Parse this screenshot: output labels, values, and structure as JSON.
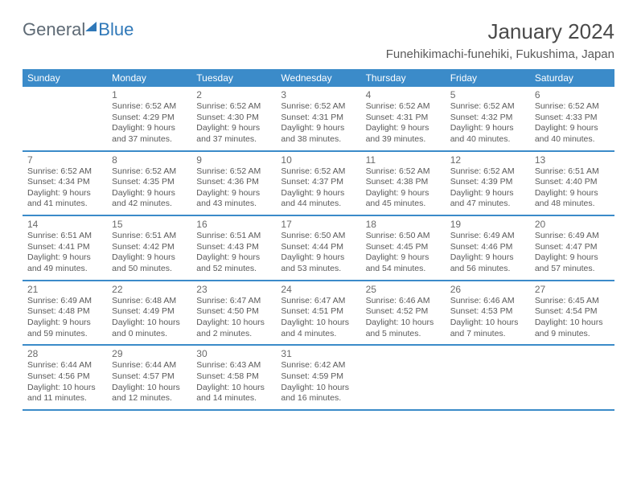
{
  "logo": {
    "part1": "General",
    "part2": "Blue"
  },
  "header": {
    "month_year": "January 2024",
    "location": "Funehikimachi-funehiki, Fukushima, Japan"
  },
  "colors": {
    "header_bar": "#3b8bc9",
    "row_border": "#3b8bc9",
    "bg": "#ffffff",
    "text": "#5a5a5a",
    "logo_gray": "#5e6a75",
    "logo_blue": "#2f78b8"
  },
  "weekdays": [
    "Sunday",
    "Monday",
    "Tuesday",
    "Wednesday",
    "Thursday",
    "Friday",
    "Saturday"
  ],
  "weeks": [
    [
      null,
      {
        "d": "1",
        "sr": "6:52 AM",
        "ss": "4:29 PM",
        "dl": "9 hours and 37 minutes."
      },
      {
        "d": "2",
        "sr": "6:52 AM",
        "ss": "4:30 PM",
        "dl": "9 hours and 37 minutes."
      },
      {
        "d": "3",
        "sr": "6:52 AM",
        "ss": "4:31 PM",
        "dl": "9 hours and 38 minutes."
      },
      {
        "d": "4",
        "sr": "6:52 AM",
        "ss": "4:31 PM",
        "dl": "9 hours and 39 minutes."
      },
      {
        "d": "5",
        "sr": "6:52 AM",
        "ss": "4:32 PM",
        "dl": "9 hours and 40 minutes."
      },
      {
        "d": "6",
        "sr": "6:52 AM",
        "ss": "4:33 PM",
        "dl": "9 hours and 40 minutes."
      }
    ],
    [
      {
        "d": "7",
        "sr": "6:52 AM",
        "ss": "4:34 PM",
        "dl": "9 hours and 41 minutes."
      },
      {
        "d": "8",
        "sr": "6:52 AM",
        "ss": "4:35 PM",
        "dl": "9 hours and 42 minutes."
      },
      {
        "d": "9",
        "sr": "6:52 AM",
        "ss": "4:36 PM",
        "dl": "9 hours and 43 minutes."
      },
      {
        "d": "10",
        "sr": "6:52 AM",
        "ss": "4:37 PM",
        "dl": "9 hours and 44 minutes."
      },
      {
        "d": "11",
        "sr": "6:52 AM",
        "ss": "4:38 PM",
        "dl": "9 hours and 45 minutes."
      },
      {
        "d": "12",
        "sr": "6:52 AM",
        "ss": "4:39 PM",
        "dl": "9 hours and 47 minutes."
      },
      {
        "d": "13",
        "sr": "6:51 AM",
        "ss": "4:40 PM",
        "dl": "9 hours and 48 minutes."
      }
    ],
    [
      {
        "d": "14",
        "sr": "6:51 AM",
        "ss": "4:41 PM",
        "dl": "9 hours and 49 minutes."
      },
      {
        "d": "15",
        "sr": "6:51 AM",
        "ss": "4:42 PM",
        "dl": "9 hours and 50 minutes."
      },
      {
        "d": "16",
        "sr": "6:51 AM",
        "ss": "4:43 PM",
        "dl": "9 hours and 52 minutes."
      },
      {
        "d": "17",
        "sr": "6:50 AM",
        "ss": "4:44 PM",
        "dl": "9 hours and 53 minutes."
      },
      {
        "d": "18",
        "sr": "6:50 AM",
        "ss": "4:45 PM",
        "dl": "9 hours and 54 minutes."
      },
      {
        "d": "19",
        "sr": "6:49 AM",
        "ss": "4:46 PM",
        "dl": "9 hours and 56 minutes."
      },
      {
        "d": "20",
        "sr": "6:49 AM",
        "ss": "4:47 PM",
        "dl": "9 hours and 57 minutes."
      }
    ],
    [
      {
        "d": "21",
        "sr": "6:49 AM",
        "ss": "4:48 PM",
        "dl": "9 hours and 59 minutes."
      },
      {
        "d": "22",
        "sr": "6:48 AM",
        "ss": "4:49 PM",
        "dl": "10 hours and 0 minutes."
      },
      {
        "d": "23",
        "sr": "6:47 AM",
        "ss": "4:50 PM",
        "dl": "10 hours and 2 minutes."
      },
      {
        "d": "24",
        "sr": "6:47 AM",
        "ss": "4:51 PM",
        "dl": "10 hours and 4 minutes."
      },
      {
        "d": "25",
        "sr": "6:46 AM",
        "ss": "4:52 PM",
        "dl": "10 hours and 5 minutes."
      },
      {
        "d": "26",
        "sr": "6:46 AM",
        "ss": "4:53 PM",
        "dl": "10 hours and 7 minutes."
      },
      {
        "d": "27",
        "sr": "6:45 AM",
        "ss": "4:54 PM",
        "dl": "10 hours and 9 minutes."
      }
    ],
    [
      {
        "d": "28",
        "sr": "6:44 AM",
        "ss": "4:56 PM",
        "dl": "10 hours and 11 minutes."
      },
      {
        "d": "29",
        "sr": "6:44 AM",
        "ss": "4:57 PM",
        "dl": "10 hours and 12 minutes."
      },
      {
        "d": "30",
        "sr": "6:43 AM",
        "ss": "4:58 PM",
        "dl": "10 hours and 14 minutes."
      },
      {
        "d": "31",
        "sr": "6:42 AM",
        "ss": "4:59 PM",
        "dl": "10 hours and 16 minutes."
      },
      null,
      null,
      null
    ]
  ],
  "labels": {
    "sunrise_prefix": "Sunrise: ",
    "sunset_prefix": "Sunset: ",
    "daylight_prefix": "Daylight: "
  }
}
